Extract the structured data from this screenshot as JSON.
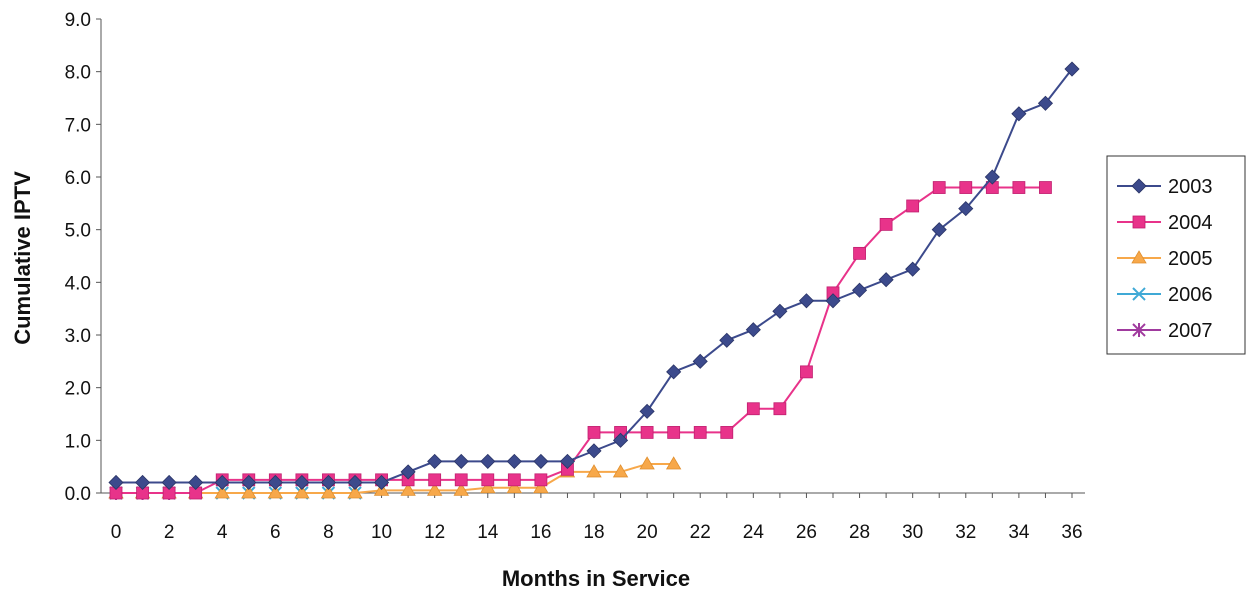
{
  "chart_data": {
    "type": "line",
    "title": "",
    "xlabel": "Months in Service",
    "ylabel": "Cumulative IPTV",
    "xlim": [
      0,
      36
    ],
    "ylim": [
      0,
      9
    ],
    "x_ticks": [
      0,
      2,
      4,
      6,
      8,
      10,
      12,
      14,
      16,
      18,
      20,
      22,
      24,
      26,
      28,
      30,
      32,
      34,
      36
    ],
    "y_ticks": [
      "0.0",
      "1.0",
      "2.0",
      "3.0",
      "4.0",
      "5.0",
      "6.0",
      "7.0",
      "8.0",
      "9.0"
    ],
    "grid": false,
    "legend_position": "right",
    "series": [
      {
        "name": "2003",
        "color": "#3c4a8c",
        "marker": "diamond",
        "x": [
          0,
          1,
          2,
          3,
          4,
          5,
          6,
          7,
          8,
          9,
          10,
          11,
          12,
          13,
          14,
          15,
          16,
          17,
          18,
          19,
          20,
          21,
          22,
          23,
          24,
          25,
          26,
          27,
          28,
          29,
          30,
          31,
          32,
          33,
          34,
          35,
          36
        ],
        "y": [
          0.2,
          0.2,
          0.2,
          0.2,
          0.2,
          0.2,
          0.2,
          0.2,
          0.2,
          0.2,
          0.2,
          0.4,
          0.6,
          0.6,
          0.6,
          0.6,
          0.6,
          0.6,
          0.8,
          1.0,
          1.55,
          2.3,
          2.5,
          2.9,
          3.1,
          3.45,
          3.65,
          3.65,
          3.85,
          4.05,
          4.25,
          5.0,
          5.4,
          6.0,
          7.2,
          7.4,
          8.05
        ]
      },
      {
        "name": "2004",
        "color": "#e8338a",
        "marker": "square",
        "x": [
          0,
          1,
          2,
          3,
          4,
          5,
          6,
          7,
          8,
          9,
          10,
          11,
          12,
          13,
          14,
          15,
          16,
          17,
          18,
          19,
          20,
          21,
          22,
          23,
          24,
          25,
          26,
          27,
          28,
          29,
          30,
          31,
          32,
          33,
          34,
          35
        ],
        "y": [
          0.0,
          0.0,
          0.0,
          0.0,
          0.25,
          0.25,
          0.25,
          0.25,
          0.25,
          0.25,
          0.25,
          0.25,
          0.25,
          0.25,
          0.25,
          0.25,
          0.25,
          0.45,
          1.15,
          1.15,
          1.15,
          1.15,
          1.15,
          1.15,
          1.6,
          1.6,
          2.3,
          3.8,
          4.55,
          5.1,
          5.45,
          5.8,
          5.8,
          5.8,
          5.8,
          5.8
        ]
      },
      {
        "name": "2005",
        "color": "#f7a84a",
        "marker": "triangle",
        "x": [
          0,
          1,
          2,
          3,
          4,
          5,
          6,
          7,
          8,
          9,
          10,
          11,
          12,
          13,
          14,
          15,
          16,
          17,
          18,
          19,
          20,
          21
        ],
        "y": [
          0.0,
          0.0,
          0.0,
          0.0,
          0.0,
          0.0,
          0.0,
          0.0,
          0.0,
          0.0,
          0.05,
          0.05,
          0.05,
          0.05,
          0.1,
          0.1,
          0.1,
          0.4,
          0.4,
          0.4,
          0.55,
          0.55
        ]
      },
      {
        "name": "2006",
        "color": "#3fa9d6",
        "marker": "x",
        "x": [
          0,
          1,
          2,
          3,
          4,
          5,
          6,
          7,
          8,
          9
        ],
        "y": [
          0.0,
          0.0,
          0.0,
          0.0,
          0.0,
          0.0,
          0.0,
          0.0,
          0.0,
          0.0
        ]
      },
      {
        "name": "2007",
        "color": "#a03a9e",
        "marker": "star",
        "x": [
          0,
          1,
          2
        ],
        "y": [
          0.0,
          0.0,
          0.0
        ]
      }
    ]
  }
}
